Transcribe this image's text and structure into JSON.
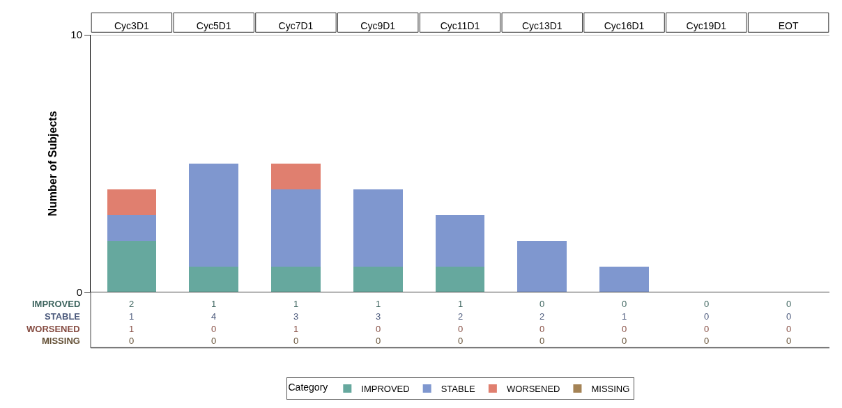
{
  "chart_data": {
    "type": "bar",
    "stacked": true,
    "ylabel": "Number of Subjects",
    "legend_title": "Category",
    "legend": "bottom",
    "data_labels": true,
    "categories": [
      "Cyc3D1",
      "Cyc5D1",
      "Cyc7D1",
      "Cyc9D1",
      "Cyc11D1",
      "Cyc13D1",
      "Cyc16D1",
      "Cyc19D1",
      "EOT"
    ],
    "ylim": [
      0,
      10
    ],
    "yticks": [
      0,
      10
    ],
    "series": [
      {
        "name": "IMPROVED",
        "color": "#66a89e",
        "values": [
          2,
          1,
          1,
          1,
          1,
          0,
          0,
          0,
          0
        ]
      },
      {
        "name": "STABLE",
        "color": "#7f97cf",
        "values": [
          1,
          4,
          3,
          3,
          2,
          2,
          1,
          0,
          0
        ]
      },
      {
        "name": "WORSENED",
        "color": "#e07f6f",
        "values": [
          1,
          0,
          1,
          0,
          0,
          0,
          0,
          0,
          0
        ]
      },
      {
        "name": "MISSING",
        "color": "#a48355",
        "values": [
          0,
          0,
          0,
          0,
          0,
          0,
          0,
          0,
          0
        ]
      }
    ]
  }
}
